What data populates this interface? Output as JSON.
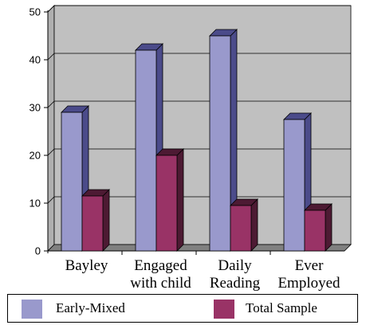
{
  "chart_data": {
    "type": "bar",
    "categories": [
      [
        "Bayley"
      ],
      [
        "Engaged",
        "with child"
      ],
      [
        "Daily",
        "Reading"
      ],
      [
        "Ever",
        "Employed"
      ]
    ],
    "series": [
      {
        "name": "Early-Mixed",
        "values": [
          29,
          42,
          45,
          27.5
        ],
        "color": "#9999cc",
        "side_color": "#4b4b8a"
      },
      {
        "name": "Total Sample",
        "values": [
          11.5,
          20,
          9.5,
          8.5
        ],
        "color": "#993366",
        "side_color": "#4d1a33"
      }
    ],
    "yticks": [
      "0",
      "10",
      "20",
      "30",
      "40",
      "50"
    ],
    "ylim": [
      0,
      50
    ],
    "grid": true,
    "legend_position": "bottom",
    "colors": {
      "wall": "#c0c0c0",
      "floor": "#808080"
    }
  }
}
